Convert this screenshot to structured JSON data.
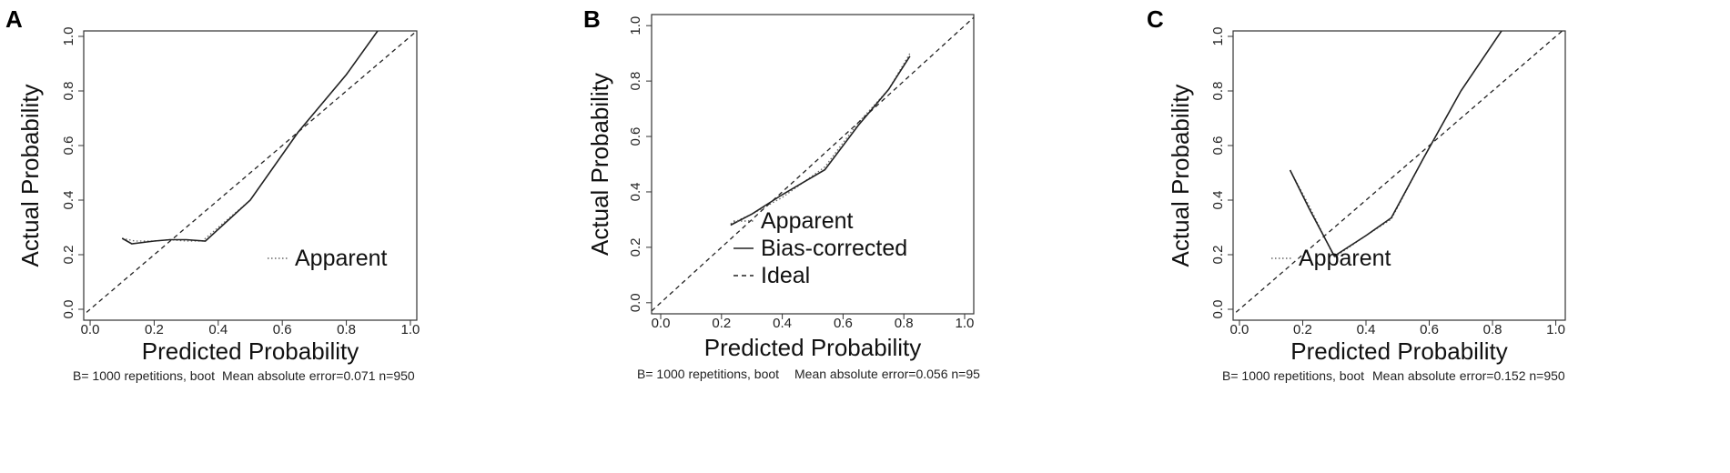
{
  "panels": [
    {
      "letter": "A",
      "footnote_left": "B= 1000 repetitions, boot",
      "footnote_right": "Mean absolute error=0.071 n=950"
    },
    {
      "letter": "B",
      "footnote_left": "B= 1000 repetitions, boot",
      "footnote_right": "Mean absolute error=0.056 n=95"
    },
    {
      "letter": "C",
      "footnote_left": "B= 1000 repetitions, boot",
      "footnote_right": "Mean absolute error=0.152 n=950"
    }
  ],
  "chart_data": [
    {
      "type": "line",
      "title": "",
      "xlabel": "Predicted Probability",
      "ylabel": "Actual Probability",
      "xlim": [
        0.0,
        1.0
      ],
      "ylim": [
        0.0,
        1.0
      ],
      "xticks": [
        "0.0",
        "0.2",
        "0.4",
        "0.6",
        "0.8",
        "1.0"
      ],
      "yticks": [
        "0.0",
        "0.2",
        "0.4",
        "0.6",
        "0.8",
        "1.0"
      ],
      "grid": false,
      "legend_position": "bottom-right",
      "legend": [
        "Apparent"
      ],
      "series": [
        {
          "name": "Apparent",
          "style": "dotted",
          "x": [
            0.1,
            0.14,
            0.2,
            0.25,
            0.3,
            0.35,
            0.5,
            0.65,
            0.8,
            0.91
          ],
          "y": [
            0.26,
            0.25,
            0.25,
            0.255,
            0.25,
            0.25,
            0.4,
            0.65,
            0.86,
            1.04
          ]
        },
        {
          "style": "solid",
          "x": [
            0.1,
            0.13,
            0.2,
            0.25,
            0.3,
            0.36,
            0.5,
            0.65,
            0.8,
            0.91
          ],
          "y": [
            0.26,
            0.24,
            0.25,
            0.255,
            0.255,
            0.25,
            0.4,
            0.65,
            0.86,
            1.04
          ]
        },
        {
          "style": "dashed",
          "x": [
            -0.05,
            1.05
          ],
          "y": [
            -0.05,
            1.05
          ]
        }
      ]
    },
    {
      "type": "line",
      "title": "",
      "xlabel": "Predicted Probability",
      "ylabel": "Actual Probability",
      "xlim": [
        0.0,
        1.0
      ],
      "ylim": [
        0.0,
        1.0
      ],
      "xticks": [
        "0.0",
        "0.2",
        "0.4",
        "0.6",
        "0.8",
        "1.0"
      ],
      "yticks": [
        "0.0",
        "0.2",
        "0.4",
        "0.6",
        "0.8",
        "1.0"
      ],
      "grid": false,
      "legend_position": "bottom-right",
      "legend": [
        "Apparent",
        "Bias-corrected",
        "Ideal"
      ],
      "series": [
        {
          "name": "Apparent",
          "style": "dotted",
          "x": [
            0.23,
            0.3,
            0.4,
            0.54,
            0.65,
            0.75,
            0.82
          ],
          "y": [
            0.285,
            0.32,
            0.38,
            0.49,
            0.65,
            0.77,
            0.9
          ]
        },
        {
          "name": "Bias-corrected",
          "style": "solid",
          "x": [
            0.23,
            0.3,
            0.4,
            0.54,
            0.65,
            0.75,
            0.82
          ],
          "y": [
            0.28,
            0.32,
            0.39,
            0.48,
            0.64,
            0.77,
            0.89
          ]
        },
        {
          "name": "Ideal",
          "style": "dashed",
          "x": [
            -0.05,
            1.05
          ],
          "y": [
            -0.05,
            1.05
          ]
        }
      ]
    },
    {
      "type": "line",
      "title": "",
      "xlabel": "Predicted Probability",
      "ylabel": "Actual Probability",
      "xlim": [
        0.0,
        1.0
      ],
      "ylim": [
        0.0,
        1.0
      ],
      "xticks": [
        "0.0",
        "0.2",
        "0.4",
        "0.6",
        "0.8",
        "1.0"
      ],
      "yticks": [
        "0.0",
        "0.2",
        "0.4",
        "0.6",
        "0.8",
        "1.0"
      ],
      "grid": false,
      "legend_position": "bottom-right",
      "legend": [
        "Apparent"
      ],
      "series": [
        {
          "name": "Apparent",
          "style": "dotted",
          "x": [
            0.16,
            0.22,
            0.3,
            0.4,
            0.48,
            0.58,
            0.7,
            0.84
          ],
          "y": [
            0.51,
            0.38,
            0.19,
            0.27,
            0.33,
            0.55,
            0.8,
            1.04
          ]
        },
        {
          "style": "solid",
          "x": [
            0.16,
            0.22,
            0.3,
            0.4,
            0.48,
            0.58,
            0.7,
            0.84
          ],
          "y": [
            0.51,
            0.37,
            0.195,
            0.27,
            0.335,
            0.55,
            0.8,
            1.04
          ]
        },
        {
          "style": "dashed",
          "x": [
            -0.05,
            1.05
          ],
          "y": [
            -0.05,
            1.05
          ]
        }
      ]
    }
  ]
}
